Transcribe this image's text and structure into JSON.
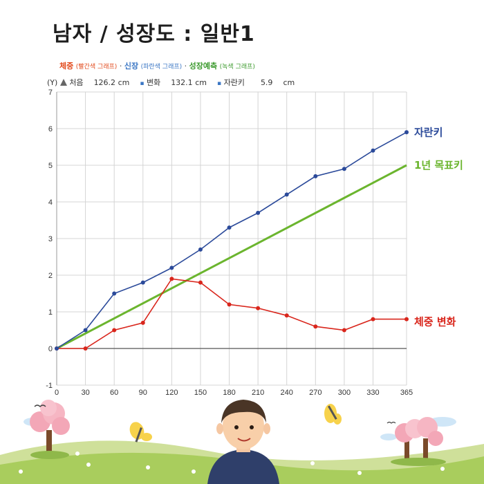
{
  "header": {
    "title": "남자 / 성장도 : 일반1"
  },
  "legend": {
    "weight_label": "체중",
    "weight_note": "(빨간색 그래프)",
    "height_label": "신장",
    "height_note": "(파란색 그래프)",
    "growth_label": "성장예측",
    "growth_note": "(녹색 그래프)",
    "sep": "·"
  },
  "info": {
    "y_marker": "(Y)",
    "start_label": "처음",
    "start_value": "126.2",
    "start_unit": "cm",
    "bullet": "▪",
    "change_label": "변화",
    "change_value": "132.1",
    "change_unit": "cm",
    "grow_label": "자란키",
    "grow_value": "5.9",
    "grow_unit": "cm"
  },
  "colors": {
    "height": "#2b4a9a",
    "weight": "#d9261c",
    "growth": "#6bb52e",
    "grid": "#d4d4d4",
    "axis": "#555555"
  },
  "chart_data": {
    "type": "line",
    "x": [
      0,
      30,
      60,
      90,
      120,
      150,
      180,
      210,
      240,
      270,
      300,
      330,
      365
    ],
    "xticks": [
      "0",
      "30",
      "60",
      "90",
      "120",
      "150",
      "180",
      "210",
      "240",
      "270",
      "300",
      "330",
      "365"
    ],
    "yticks": [
      "-1",
      "0",
      "1",
      "2",
      "3",
      "4",
      "5",
      "6",
      "7"
    ],
    "ylim": [
      -1,
      7
    ],
    "xlim": [
      0,
      365
    ],
    "grid": true,
    "series": [
      {
        "name": "자란키",
        "color": "#2b4a9a",
        "values": [
          0,
          0.5,
          1.5,
          1.8,
          2.2,
          2.7,
          3.3,
          3.7,
          4.2,
          4.7,
          4.9,
          5.4,
          5.9
        ]
      },
      {
        "name": "체중 변화",
        "color": "#d9261c",
        "values": [
          0,
          0,
          0.5,
          0.7,
          1.9,
          1.8,
          1.2,
          1.1,
          0.9,
          0.6,
          0.5,
          0.8,
          0.8
        ]
      },
      {
        "name": "1년 목표키",
        "color": "#6bb52e",
        "x": [
          0,
          365
        ],
        "values": [
          0,
          5
        ]
      }
    ]
  }
}
